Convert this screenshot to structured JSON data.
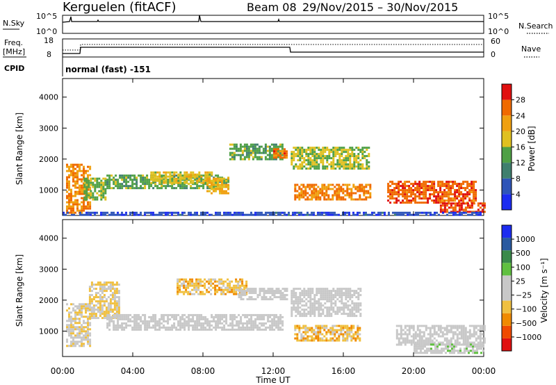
{
  "header": {
    "station": "Kerguelen (fitACF)",
    "beam": "Beam 08",
    "dates": "29/Nov/2015 – 30/Nov/2015"
  },
  "top_panels": {
    "nsky_label": "N.Sky",
    "nsearch_label": "N.Search",
    "noise_ticks": [
      "10^5",
      "10^0"
    ],
    "freq_label": "Freq.",
    "freq_unit": "[MHz]",
    "freq_ticks": [
      "18",
      "8"
    ],
    "nave_label": "Nave",
    "nave_ticks": [
      "60",
      "0"
    ],
    "cpid_label": "CPID",
    "cpid_value": "normal (fast) -151"
  },
  "colors": {
    "power_scale": [
      "#1c2cf0",
      "#2f55b8",
      "#3f7f6e",
      "#4fa046",
      "#e0c020",
      "#f0a010",
      "#f06a00",
      "#e01010"
    ],
    "velocity_scale": [
      "#e01010",
      "#f04a00",
      "#f08a00",
      "#f0c040",
      "#c8c8c8",
      "#c8c8c8",
      "#60c040",
      "#3a8a4a",
      "#2a5aa0",
      "#1c2cf0"
    ]
  },
  "chart_data": [
    {
      "type": "heatmap",
      "panel": "power",
      "ylabel": "Slant Range [km]",
      "ylim": [
        180,
        4600
      ],
      "xlim": [
        0,
        24
      ],
      "y_ticks": [
        "1000",
        "2000",
        "3000",
        "4000"
      ],
      "x_ticks": [
        "00:00",
        "04:00",
        "08:00",
        "12:00",
        "16:00",
        "20:00",
        "00:00"
      ],
      "colorbar_label": "Power [dB]",
      "colorbar_ticks": [
        "4",
        "8",
        "12",
        "16",
        "20",
        "24",
        "28"
      ],
      "colorbar_range": [
        0,
        30
      ],
      "regions": [
        {
          "t0": 0.2,
          "t1": 1.6,
          "r0": 250,
          "r1": 1850,
          "v": 22
        },
        {
          "t0": 1.2,
          "t1": 2.4,
          "r0": 700,
          "r1": 1400,
          "v": 14
        },
        {
          "t0": 2.5,
          "t1": 9.5,
          "r0": 1050,
          "r1": 1500,
          "v": 13
        },
        {
          "t0": 5.0,
          "t1": 8.5,
          "r0": 1200,
          "r1": 1600,
          "v": 17
        },
        {
          "t0": 8.2,
          "t1": 9.5,
          "r0": 900,
          "r1": 1400,
          "v": 19
        },
        {
          "t0": 9.5,
          "t1": 12.5,
          "r0": 2000,
          "r1": 2500,
          "v": 13
        },
        {
          "t0": 12.0,
          "t1": 12.8,
          "r0": 2050,
          "r1": 2350,
          "v": 24
        },
        {
          "t0": 13.0,
          "t1": 17.5,
          "r0": 1700,
          "r1": 2400,
          "v": 15
        },
        {
          "t0": 13.2,
          "t1": 17.5,
          "r0": 700,
          "r1": 1200,
          "v": 23
        },
        {
          "t0": 18.5,
          "t1": 23.5,
          "r0": 600,
          "r1": 1300,
          "v": 25
        },
        {
          "t0": 21.5,
          "t1": 24.0,
          "r0": 280,
          "r1": 600,
          "v": 26
        },
        {
          "t0": 0.0,
          "t1": 24.0,
          "r0": 180,
          "r1": 300,
          "v": 5
        }
      ]
    },
    {
      "type": "heatmap",
      "panel": "velocity",
      "ylabel": "Slant Range [km]",
      "xlabel": "Time UT",
      "ylim": [
        180,
        4600
      ],
      "xlim": [
        0,
        24
      ],
      "y_ticks": [
        "1000",
        "2000",
        "3000",
        "4000"
      ],
      "x_ticks": [
        "00:00",
        "04:00",
        "08:00",
        "12:00",
        "16:00",
        "20:00",
        "00:00"
      ],
      "colorbar_label": "Velocity [m s⁻¹]",
      "colorbar_ticks": [
        "1000",
        "500",
        "100",
        "25",
        "−25",
        "−100",
        "−500",
        "−1000"
      ],
      "colorbar_range": [
        -1000,
        1000
      ],
      "regions": [
        {
          "t0": 0.2,
          "t1": 1.6,
          "r0": 500,
          "r1": 1900,
          "v": -150
        },
        {
          "t0": 1.5,
          "t1": 3.2,
          "r0": 1400,
          "r1": 2600,
          "v": -200
        },
        {
          "t0": 2.5,
          "t1": 12.5,
          "r0": 1050,
          "r1": 1550,
          "v": 0
        },
        {
          "t0": 6.5,
          "t1": 10.5,
          "r0": 2200,
          "r1": 2700,
          "v": -300
        },
        {
          "t0": 10.0,
          "t1": 12.8,
          "r0": 2000,
          "r1": 2400,
          "v": 0
        },
        {
          "t0": 13.0,
          "t1": 17.0,
          "r0": 1500,
          "r1": 2400,
          "v": 0
        },
        {
          "t0": 13.2,
          "t1": 17.0,
          "r0": 700,
          "r1": 1200,
          "v": -300
        },
        {
          "t0": 19.0,
          "t1": 24.0,
          "r0": 550,
          "r1": 1200,
          "v": 0
        },
        {
          "t0": 20.0,
          "t1": 24.0,
          "r0": 300,
          "r1": 600,
          "v": 80
        }
      ]
    }
  ]
}
